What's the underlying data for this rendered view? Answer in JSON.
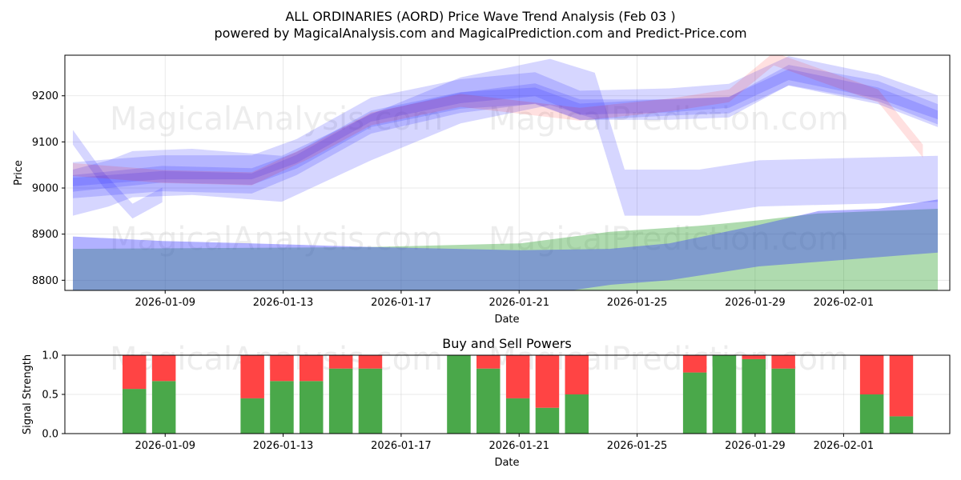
{
  "header": {
    "title": "ALL ORDINARIES (AORD) Price Wave Trend Analysis (Feb 03 )",
    "subtitle": "powered by MagicalAnalysis.com and MagicalPrediction.com and Predict-Price.com"
  },
  "watermarks": {
    "left": "MagicalAnalysis.com",
    "right": "MagicalPrediction.com"
  },
  "colors": {
    "blue_band": "#3333ff",
    "red_band": "#ff0000",
    "green_area": "#2ca02c",
    "buy": "#4aa84a",
    "sell": "#ff4444"
  },
  "chart_data": [
    {
      "type": "area",
      "title": "",
      "xlabel": "Date",
      "ylabel": "Price",
      "ylim": [
        8778,
        9288
      ],
      "xlim": [
        "2026-01-05.6",
        "2026-02-04.6"
      ],
      "x_ticks": [
        "2026-01-09",
        "2026-01-13",
        "2026-01-17",
        "2026-01-21",
        "2026-01-25",
        "2026-01-29",
        "2026-02-01"
      ],
      "y_ticks": [
        8800,
        8900,
        9000,
        9100,
        9200
      ],
      "x_tick_days": [
        3.4,
        7.4,
        11.4,
        15.4,
        19.4,
        23.4,
        26.4
      ],
      "grid": true,
      "series": [
        {
          "name": "wave-band-1",
          "color": "blue",
          "kind": "band",
          "x": [
            0,
            3,
            6,
            7.5,
            10,
            13,
            15.5,
            17,
            20,
            22,
            24,
            27,
            29
          ],
          "y": [
            9010,
            9030,
            9025,
            9060,
            9150,
            9190,
            9200,
            9165,
            9175,
            9180,
            9240,
            9200,
            9150
          ],
          "half_width": 18
        },
        {
          "name": "wave-band-2",
          "color": "blue",
          "kind": "band",
          "x": [
            0,
            3,
            6,
            7.5,
            10,
            13,
            15.5,
            17,
            20,
            22,
            24,
            27,
            29
          ],
          "y": [
            9000,
            9015,
            9010,
            9050,
            9140,
            9185,
            9205,
            9170,
            9170,
            9175,
            9245,
            9210,
            9160
          ],
          "half_width": 22
        },
        {
          "name": "wave-band-3",
          "color": "blue",
          "kind": "band",
          "x": [
            0,
            3,
            6,
            7.5,
            10,
            13,
            15.5,
            17,
            20,
            22,
            24,
            27,
            29
          ],
          "y": [
            9030,
            9045,
            9045,
            9080,
            9170,
            9210,
            9225,
            9185,
            9190,
            9200,
            9260,
            9220,
            9175
          ],
          "half_width": 26
        },
        {
          "name": "wave-band-4",
          "color": "blue",
          "kind": "band",
          "x": [
            0,
            1.2,
            2,
            4,
            7,
            10,
            13,
            16,
            17.5,
            18.5,
            21,
            23,
            29
          ],
          "y": [
            8990,
            9010,
            9030,
            9035,
            9020,
            9110,
            9190,
            9230,
            9200,
            8990,
            8990,
            9010,
            9020
          ],
          "half_width": 50
        },
        {
          "name": "wave-band-5",
          "color": "blue",
          "kind": "band",
          "x": [
            0,
            1,
            2,
            3
          ],
          "y": [
            9110,
            9020,
            8950,
            8985
          ],
          "half_width": 16
        },
        {
          "name": "wave-band-6",
          "color": "red",
          "kind": "band",
          "x": [
            0,
            3,
            6,
            8,
            10,
            13,
            15,
            17,
            20,
            22,
            23.5,
            27,
            28.5
          ],
          "y": [
            9040,
            9025,
            9020,
            9080,
            9150,
            9190,
            9175,
            9160,
            9180,
            9200,
            9280,
            9200,
            9080
          ],
          "half_width": 14
        },
        {
          "name": "green-area",
          "color": "green",
          "kind": "area",
          "x": [
            0,
            5,
            10,
            15,
            18,
            21,
            23,
            25,
            27,
            29
          ],
          "upper": [
            8868,
            8870,
            8872,
            8880,
            8905,
            8918,
            8930,
            8945,
            8950,
            8955
          ],
          "lower": [
            8740,
            8740,
            8740,
            8740,
            8740,
            8740,
            8740,
            8740,
            8740,
            8740
          ]
        },
        {
          "name": "lower-band",
          "color": "blue",
          "kind": "fill",
          "x": [
            0,
            3,
            6,
            10,
            15,
            18,
            20,
            23,
            25,
            27,
            29
          ],
          "upper": [
            8895,
            8885,
            8880,
            8872,
            8865,
            8868,
            8880,
            8920,
            8950,
            8955,
            8975
          ],
          "lower": [
            8760,
            8760,
            8760,
            8760,
            8762,
            8790,
            8800,
            8830,
            8840,
            8850,
            8860
          ]
        }
      ]
    },
    {
      "type": "bar",
      "title": "Buy and Sell Powers",
      "xlabel": "Date",
      "ylabel": "Signal Strength",
      "ylim": [
        0,
        1.0
      ],
      "xlim": [
        "2026-01-05.6",
        "2026-02-04.6"
      ],
      "x_ticks": [
        "2026-01-09",
        "2026-01-13",
        "2026-01-17",
        "2026-01-21",
        "2026-01-25",
        "2026-01-29",
        "2026-02-01"
      ],
      "y_ticks": [
        "0.0",
        "0.5",
        "1.0"
      ],
      "x_tick_days": [
        3.4,
        7.4,
        11.4,
        15.4,
        19.4,
        23.4,
        26.4
      ],
      "grid": true,
      "series": [
        {
          "name": "Buy",
          "days": [
            2,
            3,
            6,
            7,
            8,
            9,
            10,
            13,
            14,
            15,
            16,
            17,
            21,
            22,
            23,
            24,
            27,
            28
          ],
          "values": [
            0.57,
            0.67,
            0.45,
            0.67,
            0.67,
            0.83,
            0.83,
            1.0,
            0.83,
            0.45,
            0.33,
            0.5,
            0.78,
            1.0,
            0.95,
            0.83,
            0.5,
            0.22
          ]
        },
        {
          "name": "Sell",
          "days": [
            2,
            3,
            6,
            7,
            8,
            9,
            10,
            13,
            14,
            15,
            16,
            17,
            21,
            22,
            23,
            24,
            27,
            28
          ],
          "values": [
            0.43,
            0.33,
            0.55,
            0.33,
            0.33,
            0.17,
            0.17,
            0.0,
            0.17,
            0.55,
            0.67,
            0.5,
            0.22,
            0.0,
            0.05,
            0.17,
            0.5,
            0.78
          ]
        }
      ]
    }
  ]
}
